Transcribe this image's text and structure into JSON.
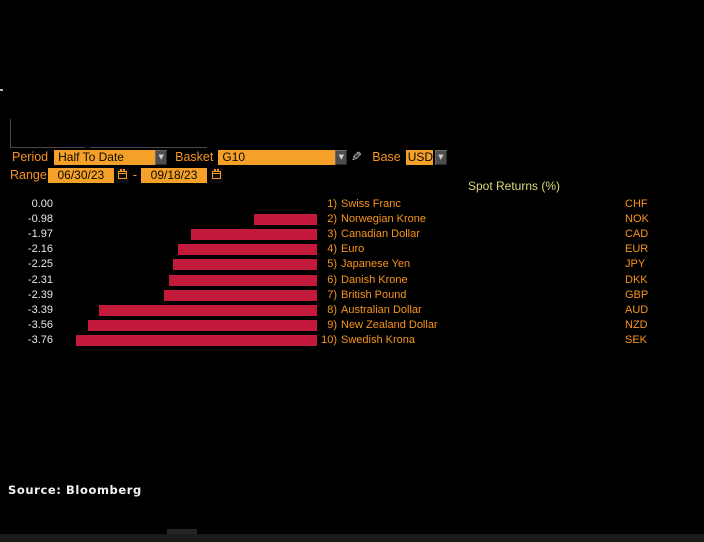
{
  "toolbar": {
    "period_label": "Period",
    "period_value": "Half To Date",
    "basket_label": "Basket",
    "basket_value": "G10",
    "base_label": "Base",
    "base_value": "USD",
    "range_label": "Range",
    "range_start": "06/30/23",
    "range_separator": "-",
    "range_end": "09/18/23"
  },
  "icons": {
    "dropdown_arrow": "▼",
    "pencil": "✎"
  },
  "chart_data": {
    "type": "bar",
    "orientation": "horizontal",
    "title": "Spot Returns (%)",
    "bar_color": "#c31a3b",
    "value_range": [
      -3.76,
      0
    ],
    "grid": false,
    "rows": [
      {
        "rank": "1)",
        "name": "Swiss Franc",
        "code": "CHF",
        "value": 0.0,
        "display": "0.00"
      },
      {
        "rank": "2)",
        "name": "Norwegian Krone",
        "code": "NOK",
        "value": -0.98,
        "display": "-0.98"
      },
      {
        "rank": "3)",
        "name": "Canadian Dollar",
        "code": "CAD",
        "value": -1.97,
        "display": "-1.97"
      },
      {
        "rank": "4)",
        "name": "Euro",
        "code": "EUR",
        "value": -2.16,
        "display": "-2.16"
      },
      {
        "rank": "5)",
        "name": "Japanese Yen",
        "code": "JPY",
        "value": -2.25,
        "display": "-2.25"
      },
      {
        "rank": "6)",
        "name": "Danish Krone",
        "code": "DKK",
        "value": -2.31,
        "display": "-2.31"
      },
      {
        "rank": "7)",
        "name": "British Pound",
        "code": "GBP",
        "value": -2.39,
        "display": "-2.39"
      },
      {
        "rank": "8)",
        "name": "Australian Dollar",
        "code": "AUD",
        "value": -3.39,
        "display": "-3.39"
      },
      {
        "rank": "9)",
        "name": "New Zealand Dollar",
        "code": "NZD",
        "value": -3.56,
        "display": "-3.56"
      },
      {
        "rank": "10)",
        "name": "Swedish Krona",
        "code": "SEK",
        "value": -3.76,
        "display": "-3.76"
      }
    ]
  },
  "source": "Source: Bloomberg"
}
